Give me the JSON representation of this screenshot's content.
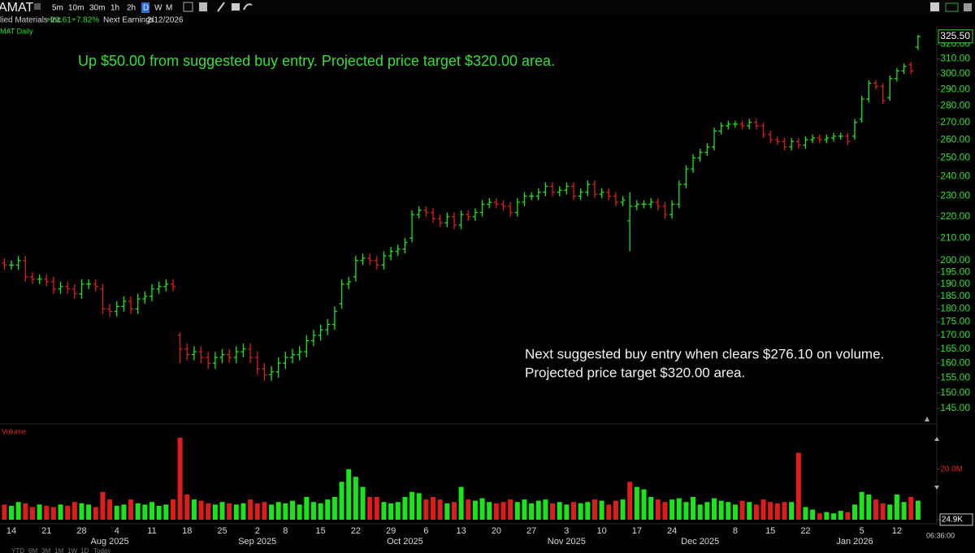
{
  "toolbar": {
    "symbol": "AMAT",
    "intervals": [
      "5m",
      "10m",
      "30m",
      "1h",
      "2h",
      "D",
      "W",
      "M"
    ],
    "company": "lied Materials Inc",
    "change": "+23.61",
    "change_pct": "+7.82%",
    "earnings_label": "Next Earnings",
    "earnings_date": "2/12/2026",
    "chart_label": "MAT Daily",
    "clock": "06:36:00",
    "ranges": [
      "YTD",
      "6M",
      "3M",
      "1M",
      "1W",
      "1D",
      "Today"
    ]
  },
  "chart_data": [
    {
      "type": "ohlc",
      "log_scale": true,
      "up_color": "#19e619",
      "down_color": "#e01b1b",
      "axis_color": "#2fe02f",
      "annotations": [
        "Up $50.00 from suggested buy entry. Projected price target $320.00 area.",
        "Next suggested buy entry when clears $276.10 on volume.",
        "Projected price target $320.00 area."
      ],
      "categories": [
        null,
        "14",
        null,
        null,
        null,
        null,
        "21",
        null,
        null,
        null,
        null,
        "28",
        null,
        null,
        null,
        null,
        "4",
        null,
        null,
        null,
        null,
        "11",
        null,
        null,
        null,
        null,
        "18",
        null,
        null,
        null,
        null,
        "25",
        null,
        null,
        null,
        null,
        "2",
        null,
        null,
        null,
        "8",
        null,
        null,
        null,
        null,
        "15",
        null,
        null,
        null,
        null,
        "22",
        null,
        null,
        null,
        null,
        "29",
        null,
        null,
        null,
        null,
        "6",
        null,
        null,
        null,
        null,
        "13",
        null,
        null,
        null,
        null,
        "20",
        null,
        null,
        null,
        null,
        "27",
        null,
        null,
        null,
        null,
        "3",
        null,
        null,
        null,
        null,
        "10",
        null,
        null,
        null,
        null,
        "17",
        null,
        null,
        null,
        null,
        "24",
        null,
        null,
        null,
        null,
        null,
        null,
        null,
        null,
        "8",
        null,
        null,
        null,
        null,
        "15",
        null,
        null,
        null,
        null,
        "22",
        null,
        null,
        null,
        null,
        null,
        null,
        null,
        "5",
        null,
        null,
        null,
        null,
        "12",
        null,
        null,
        null
      ],
      "month_categories": [
        null,
        null,
        null,
        null,
        null,
        null,
        null,
        null,
        null,
        null,
        null,
        null,
        null,
        null,
        null,
        "Aug 2025",
        null,
        null,
        null,
        null,
        null,
        null,
        null,
        null,
        null,
        null,
        null,
        null,
        null,
        null,
        null,
        null,
        null,
        null,
        null,
        null,
        "Sep 2025",
        null,
        null,
        null,
        null,
        null,
        null,
        null,
        null,
        null,
        null,
        null,
        null,
        null,
        null,
        null,
        null,
        null,
        null,
        null,
        null,
        "Oct 2025",
        null,
        null,
        null,
        null,
        null,
        null,
        null,
        null,
        null,
        null,
        null,
        null,
        null,
        null,
        null,
        null,
        null,
        null,
        null,
        null,
        null,
        null,
        "Nov 2025",
        null,
        null,
        null,
        null,
        null,
        null,
        null,
        null,
        null,
        null,
        null,
        null,
        null,
        null,
        null,
        null,
        null,
        null,
        "Dec 2025",
        null,
        null,
        null,
        null,
        null,
        null,
        null,
        null,
        null,
        null,
        null,
        null,
        null,
        null,
        null,
        null,
        null,
        null,
        null,
        null,
        null,
        "Jan 2026",
        null,
        null,
        null,
        null,
        null,
        null,
        null,
        null,
        null
      ],
      "open": [
        199,
        198,
        198,
        200,
        193,
        192,
        192,
        191,
        188,
        189,
        188,
        186,
        190,
        190,
        188,
        180,
        179,
        181,
        183,
        180,
        184,
        185,
        188,
        189,
        190,
        170,
        165,
        163,
        164,
        162,
        160,
        162,
        163,
        162,
        164,
        165,
        162,
        158,
        156,
        157,
        160,
        162,
        163,
        164,
        168,
        170,
        172,
        174,
        182,
        190,
        193,
        200,
        201,
        200,
        198,
        202,
        204,
        205,
        210,
        221,
        223,
        222,
        219,
        217,
        220,
        216,
        221,
        220,
        222,
        226,
        227,
        226,
        225,
        222,
        227,
        230,
        230,
        232,
        235,
        232,
        233,
        235,
        230,
        232,
        236,
        231,
        232,
        230,
        227,
        218,
        225,
        226,
        226,
        227,
        225,
        221,
        226,
        236,
        244,
        250,
        253,
        256,
        265,
        268,
        269,
        269,
        268,
        270,
        268,
        263,
        260,
        259,
        256,
        259,
        257,
        260,
        261,
        260,
        261,
        262,
        262,
        262,
        272,
        284,
        294,
        292,
        285,
        297,
        302,
        306,
        318
      ],
      "high": [
        201,
        200,
        202,
        202,
        195,
        194,
        194,
        193,
        191,
        191,
        190,
        192,
        192,
        192,
        190,
        182,
        183,
        185,
        185,
        186,
        187,
        190,
        191,
        192,
        192,
        171,
        167,
        166,
        166,
        164,
        164,
        165,
        165,
        166,
        167,
        167,
        164,
        160,
        159,
        162,
        164,
        165,
        166,
        170,
        172,
        174,
        176,
        181,
        192,
        193,
        202,
        203,
        203,
        202,
        204,
        206,
        207,
        210,
        223,
        225,
        225,
        224,
        221,
        222,
        222,
        223,
        223,
        224,
        228,
        229,
        229,
        228,
        227,
        229,
        232,
        232,
        234,
        237,
        237,
        235,
        237,
        237,
        234,
        238,
        238,
        234,
        234,
        232,
        230,
        232,
        228,
        228,
        229,
        229,
        227,
        228,
        238,
        246,
        252,
        255,
        258,
        267,
        270,
        271,
        271,
        271,
        272,
        272,
        270,
        265,
        262,
        261,
        261,
        261,
        262,
        263,
        263,
        263,
        264,
        264,
        264,
        272,
        286,
        296,
        296,
        294,
        299,
        304,
        307,
        308,
        326.5
      ],
      "low": [
        196,
        196,
        196,
        191,
        190,
        190,
        189,
        186,
        186,
        186,
        184,
        184,
        188,
        187,
        178,
        177,
        177,
        179,
        178,
        178,
        182,
        183,
        186,
        187,
        187,
        160,
        161,
        161,
        160,
        158,
        158,
        160,
        160,
        160,
        162,
        160,
        156,
        154,
        154,
        155,
        158,
        160,
        161,
        162,
        166,
        168,
        170,
        172,
        180,
        188,
        191,
        198,
        198,
        196,
        196,
        200,
        202,
        203,
        208,
        219,
        220,
        217,
        215,
        215,
        214,
        214,
        218,
        218,
        220,
        224,
        224,
        223,
        220,
        220,
        225,
        228,
        228,
        230,
        230,
        230,
        231,
        228,
        228,
        230,
        229,
        229,
        228,
        225,
        225,
        204,
        223,
        224,
        224,
        223,
        219,
        219,
        224,
        234,
        242,
        248,
        251,
        254,
        263,
        266,
        267,
        266,
        266,
        266,
        261,
        258,
        257,
        254,
        254,
        255,
        255,
        258,
        258,
        258,
        259,
        260,
        257,
        260,
        270,
        282,
        290,
        281,
        283,
        295,
        300,
        299.89,
        316
      ],
      "close": [
        198,
        198,
        200,
        193,
        192,
        192,
        191,
        188,
        189,
        188,
        186,
        190,
        190,
        189,
        180,
        179,
        181,
        183,
        180,
        184,
        185,
        188,
        189,
        190,
        189,
        165,
        163,
        164,
        162,
        160,
        162,
        163,
        162,
        164,
        165,
        162,
        158,
        156,
        157,
        160,
        162,
        163,
        164,
        168,
        170,
        172,
        174,
        179,
        190,
        191,
        200,
        201,
        200,
        198,
        202,
        204,
        205,
        208,
        221,
        223,
        222,
        219,
        217,
        220,
        216,
        221,
        220,
        222,
        226,
        227,
        226,
        225,
        222,
        227,
        230,
        230,
        232,
        235,
        232,
        233,
        235,
        230,
        232,
        236,
        231,
        232,
        230,
        227,
        228,
        225,
        226,
        226,
        227,
        225,
        221,
        226,
        236,
        244,
        250,
        253,
        256,
        265,
        268,
        269,
        269,
        268,
        270,
        268,
        263,
        260,
        259,
        256,
        259,
        257,
        260,
        261,
        260,
        261,
        262,
        262,
        259,
        270,
        284,
        294,
        292,
        283,
        297,
        302,
        305,
        301.89,
        325.5
      ],
      "close_labels": [
        null,
        null,
        null,
        null,
        null,
        null,
        null,
        null,
        null,
        null,
        null,
        null,
        null,
        null,
        null,
        null,
        null,
        null,
        null,
        null,
        null,
        null,
        null,
        null,
        null,
        null,
        null,
        null,
        null,
        null,
        null,
        null,
        null,
        null,
        null,
        null,
        null,
        null,
        null,
        null,
        null,
        null,
        null,
        null,
        null,
        null,
        null,
        null,
        null,
        null,
        null,
        null,
        null,
        null,
        null,
        null,
        null,
        null,
        null,
        null,
        null,
        null,
        null,
        null,
        null,
        null,
        null,
        null,
        null,
        null,
        null,
        null,
        null,
        null,
        null,
        null,
        null,
        null,
        null,
        null,
        null,
        null,
        null,
        null,
        null,
        null,
        null,
        null,
        null,
        null,
        null,
        null,
        null,
        null,
        null,
        null,
        null,
        null,
        null,
        null,
        null,
        null,
        null,
        null,
        null,
        null,
        null,
        null,
        null,
        null,
        null,
        null,
        null,
        null,
        null,
        null,
        null,
        null,
        null,
        null,
        null,
        null,
        null,
        null,
        null,
        null,
        null,
        null,
        null,
        null,
        "325.50"
      ],
      "ylim": [
        140.7,
        330.6
      ],
      "yticks": [
        {
          "value": 145,
          "label": "145.00"
        },
        {
          "value": 150,
          "label": "150.00"
        },
        {
          "value": 155,
          "label": "155.00"
        },
        {
          "value": 160,
          "label": "160.00"
        },
        {
          "value": 165,
          "label": "165.00"
        },
        {
          "value": 170,
          "label": "170.00"
        },
        {
          "value": 175,
          "label": "175.00"
        },
        {
          "value": 180,
          "label": "180.00"
        },
        {
          "value": 185,
          "label": "185.00"
        },
        {
          "value": 190,
          "label": "190.00"
        },
        {
          "value": 195,
          "label": "195.00"
        },
        {
          "value": 200,
          "label": "200.00"
        },
        {
          "value": 210,
          "label": "210.00"
        },
        {
          "value": 220,
          "label": "220.00"
        },
        {
          "value": 230,
          "label": "230.00"
        },
        {
          "value": 240,
          "label": "240.00"
        },
        {
          "value": 250,
          "label": "250.00"
        },
        {
          "value": 260,
          "label": "260.00"
        },
        {
          "value": 270,
          "label": "270.00"
        },
        {
          "value": 280,
          "label": "280.00"
        },
        {
          "value": 290,
          "label": "290.00"
        },
        {
          "value": 300,
          "label": "300.00"
        },
        {
          "value": 310,
          "label": "310.00"
        },
        {
          "value": 320,
          "label": "320.00"
        }
      ]
    },
    {
      "type": "bar",
      "title": "Volume",
      "up_color": "#19e619",
      "down_color": "#e01b1b",
      "values": [
        6000000,
        5500000,
        7000000,
        6500000,
        5000000,
        6000000,
        5500000,
        5000000,
        6000000,
        5500000,
        7000000,
        6500000,
        6000000,
        5000000,
        11000000,
        8000000,
        5500000,
        6000000,
        8000000,
        6500000,
        6000000,
        7000000,
        5500000,
        6000000,
        8000000,
        32500000,
        10000000,
        8000000,
        7500000,
        6500000,
        6000000,
        7000000,
        6500000,
        6000000,
        6500000,
        8000000,
        6500000,
        7000000,
        6000000,
        7000000,
        6500000,
        7500000,
        6000000,
        9000000,
        7000000,
        6500000,
        8000000,
        9000000,
        15000000,
        20000000,
        17000000,
        13000000,
        9000000,
        9000000,
        7000000,
        6500000,
        7000000,
        9000000,
        11000000,
        10500000,
        8000000,
        9000000,
        8000000,
        6500000,
        7000000,
        13000000,
        8000000,
        7500000,
        8500000,
        7000000,
        6500000,
        7000000,
        8000000,
        7000000,
        8000000,
        6500000,
        7500000,
        8000000,
        6500000,
        7000000,
        6000000,
        7000000,
        6500000,
        7000000,
        8000000,
        7500000,
        6000000,
        7500000,
        8000000,
        15000000,
        13000000,
        12000000,
        9000000,
        8000000,
        7000000,
        8000000,
        8500000,
        7000000,
        9000000,
        6000000,
        7000000,
        8500000,
        7500000,
        7000000,
        6000000,
        7500000,
        7000000,
        6000000,
        8000000,
        7000000,
        6500000,
        7000000,
        7000000,
        26500000,
        5000000,
        4000000,
        2500000,
        3000000,
        2500000,
        3500000,
        3000000,
        6000000,
        11000000,
        10000000,
        8000000,
        6500000,
        6000000,
        10000000,
        7000000,
        9000000,
        7500000
      ],
      "ylim": [
        0,
        36000000
      ],
      "yticks": [
        {
          "value": 20000000,
          "label": "20.0M"
        },
        {
          "value": 24900,
          "label": "24.9K"
        }
      ]
    }
  ]
}
